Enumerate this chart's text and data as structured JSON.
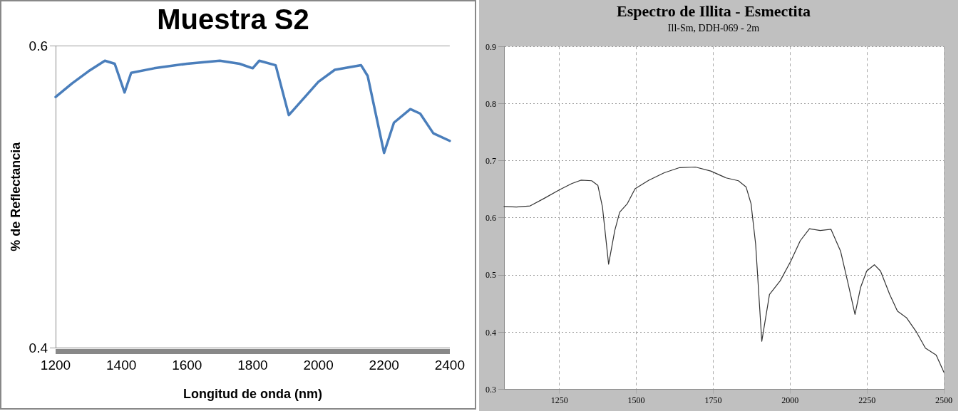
{
  "chart_data": [
    {
      "type": "line",
      "title": "Muestra S2",
      "xlabel": "Longitud de onda (nm)",
      "ylabel": "% de Reflectancia",
      "xlim": [
        1200,
        2400
      ],
      "xticks": [
        1200,
        1400,
        1600,
        1800,
        2000,
        2200,
        2400
      ],
      "ylim": [
        0.4,
        0.6
      ],
      "yticks": [
        0.4,
        0.6
      ],
      "grid": "y",
      "marker": "none",
      "line_style": "solid",
      "series": [
        {
          "color": "#4a7ebb",
          "x": [
            1200,
            1250,
            1300,
            1350,
            1380,
            1410,
            1430,
            1500,
            1600,
            1700,
            1760,
            1800,
            1820,
            1870,
            1910,
            2000,
            2050,
            2130,
            2150,
            2200,
            2230,
            2280,
            2310,
            2350,
            2400
          ],
          "values": [
            0.566,
            0.575,
            0.583,
            0.59,
            0.588,
            0.569,
            0.582,
            0.585,
            0.588,
            0.59,
            0.588,
            0.585,
            0.59,
            0.587,
            0.554,
            0.576,
            0.584,
            0.587,
            0.58,
            0.529,
            0.549,
            0.558,
            0.555,
            0.542,
            0.537
          ]
        }
      ]
    },
    {
      "type": "line",
      "title": "Espectro de Illita - Esmectita",
      "subtitle": "Ill-Sm, DDH-069 - 2m",
      "xlim": [
        1070,
        2500
      ],
      "xticks": [
        1250,
        1500,
        1750,
        2000,
        2250,
        2500
      ],
      "ylim": [
        0.3,
        0.9
      ],
      "yticks": [
        0.3,
        0.4,
        0.5,
        0.6,
        0.7,
        0.8,
        0.9
      ],
      "grid": true,
      "marker": "none",
      "line_style": "solid",
      "series": [
        {
          "color": "#333333",
          "x": [
            1070,
            1110,
            1155,
            1200,
            1250,
            1290,
            1320,
            1355,
            1375,
            1390,
            1410,
            1430,
            1446,
            1471,
            1496,
            1541,
            1591,
            1641,
            1692,
            1742,
            1792,
            1832,
            1857,
            1873,
            1888,
            1908,
            1933,
            1968,
            2003,
            2033,
            2063,
            2098,
            2133,
            2164,
            2189,
            2211,
            2229,
            2249,
            2274,
            2294,
            2324,
            2349,
            2379,
            2410,
            2440,
            2475,
            2500
          ],
          "values": [
            0.62,
            0.619,
            0.621,
            0.634,
            0.649,
            0.66,
            0.666,
            0.665,
            0.657,
            0.619,
            0.519,
            0.578,
            0.61,
            0.625,
            0.651,
            0.666,
            0.679,
            0.688,
            0.689,
            0.682,
            0.67,
            0.665,
            0.654,
            0.625,
            0.554,
            0.384,
            0.466,
            0.49,
            0.525,
            0.56,
            0.581,
            0.578,
            0.58,
            0.542,
            0.484,
            0.431,
            0.478,
            0.507,
            0.518,
            0.507,
            0.466,
            0.437,
            0.425,
            0.401,
            0.372,
            0.36,
            0.33
          ]
        }
      ]
    }
  ]
}
